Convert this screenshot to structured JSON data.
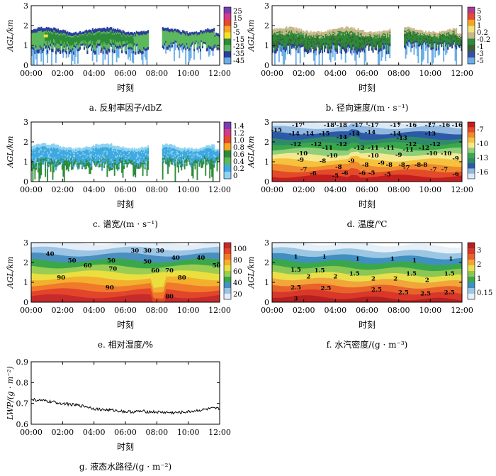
{
  "figure": {
    "common": {
      "xticks": [
        "00:00",
        "02:00",
        "04:00",
        "06:00",
        "08:00",
        "10:00",
        "12:00"
      ],
      "xlabel": "时刻",
      "ylabel": "AGL/km",
      "yticks": [
        0,
        1,
        2,
        3
      ]
    }
  },
  "chart_data": [
    {
      "id": "a",
      "type": "heatmap",
      "caption": "a. 反射率因子/dbZ",
      "xlabel": "时刻",
      "ylabel": "AGL/km",
      "ylim": [
        0,
        3
      ],
      "colorbar": {
        "ticks": [
          "25",
          "15",
          "5",
          "-5",
          "-15",
          "-25",
          "-35",
          "-45"
        ],
        "colors": [
          "#7a3db3",
          "#d63a8a",
          "#e8492e",
          "#f5a623",
          "#f4e12e",
          "#2e8b3a",
          "#5db85d",
          "#2c3f9a",
          "#6aaee6"
        ]
      },
      "data": {
        "cloud_base_km": [
          0.5,
          1.0
        ],
        "cloud_top_km": 1.8,
        "gap_interval": [
          "07:30",
          "08:20"
        ]
      }
    },
    {
      "id": "b",
      "type": "heatmap",
      "caption": "b. 径向速度/(m · s⁻¹)",
      "xlabel": "时刻",
      "ylabel": "AGL/km",
      "ylim": [
        0,
        3
      ],
      "colorbar": {
        "ticks": [
          "5",
          "3",
          "1",
          "0.2",
          "-0.2",
          "-1",
          "-3",
          "-5"
        ],
        "colors": [
          "#b03a8c",
          "#e8492e",
          "#f5a623",
          "#f1e27a",
          "#c8b88a",
          "#2e8b3a",
          "#3a5f30",
          "#3b4ea3",
          "#6aaee6"
        ]
      },
      "data": {
        "cloud_base_km": [
          0.3,
          1.0
        ],
        "cloud_top_km": 1.9
      }
    },
    {
      "id": "c",
      "type": "heatmap",
      "caption": "c. 谱宽/(m · s⁻¹)",
      "xlabel": "时刻",
      "ylabel": "AGL/km",
      "ylim": [
        0,
        3
      ],
      "colorbar": {
        "ticks": [
          "1.4",
          "1.2",
          "1.0",
          "0.8",
          "0.6",
          "0.4",
          "0.2",
          "0"
        ],
        "colors": [
          "#7a3db3",
          "#d63a8a",
          "#e8492e",
          "#f5a623",
          "#2e8b3a",
          "#5db85d",
          "#3fa9e0",
          "#8fd3f2"
        ]
      },
      "data": {
        "cloud_base_km": [
          0.3,
          1.0
        ],
        "cloud_top_km": 1.8
      }
    },
    {
      "id": "d",
      "type": "heatmap",
      "caption": "d. 温度/℃",
      "xlabel": "时刻",
      "ylabel": "AGL/km",
      "ylim": [
        0,
        3
      ],
      "colorbar": {
        "ticks": [
          "-7",
          "-10",
          "-13",
          "-16"
        ],
        "colors": [
          "#c41e1e",
          "#e34a2a",
          "#f08a2e",
          "#f6c23e",
          "#f4e98f",
          "#8fcf7a",
          "#3aa84a",
          "#2f8a6a",
          "#2c5aa6",
          "#8fb7df",
          "#dbe9f6"
        ]
      },
      "contour_labels": [
        {
          "value": "-15",
          "t": 0.28,
          "z": 2.6
        },
        {
          "value": "-17",
          "t": 1.6,
          "z": 2.85
        },
        {
          "value": "-18",
          "t": 3.6,
          "z": 2.85
        },
        {
          "value": "-18",
          "t": 4.4,
          "z": 2.85
        },
        {
          "value": "-17",
          "t": 5.4,
          "z": 2.85
        },
        {
          "value": "-17",
          "t": 6.4,
          "z": 2.85
        },
        {
          "value": "-17",
          "t": 7.8,
          "z": 2.85
        },
        {
          "value": "-16",
          "t": 8.8,
          "z": 2.85
        },
        {
          "value": "-17",
          "t": 10.0,
          "z": 2.85
        },
        {
          "value": "-16",
          "t": 10.9,
          "z": 2.85
        },
        {
          "value": "-16",
          "t": 11.7,
          "z": 2.85
        },
        {
          "value": "-14",
          "t": 1.4,
          "z": 2.42
        },
        {
          "value": "-14",
          "t": 2.3,
          "z": 2.42
        },
        {
          "value": "-15",
          "t": 3.3,
          "z": 2.42
        },
        {
          "value": "-14",
          "t": 5.2,
          "z": 2.42
        },
        {
          "value": "-14",
          "t": 6.2,
          "z": 2.5
        },
        {
          "value": "-14",
          "t": 7.8,
          "z": 2.42
        },
        {
          "value": "-13",
          "t": 10.0,
          "z": 2.42
        },
        {
          "value": "-14",
          "t": 4.4,
          "z": 2.25
        },
        {
          "value": "-13",
          "t": 8.2,
          "z": 2.22
        },
        {
          "value": "-12",
          "t": 1.5,
          "z": 1.9
        },
        {
          "value": "-12",
          "t": 2.8,
          "z": 1.9
        },
        {
          "value": "-12",
          "t": 4.4,
          "z": 1.9
        },
        {
          "value": "-12",
          "t": 8.8,
          "z": 1.9
        },
        {
          "value": "-12",
          "t": 10.3,
          "z": 1.9
        },
        {
          "value": "-11",
          "t": 3.5,
          "z": 1.72
        },
        {
          "value": "-12",
          "t": 5.5,
          "z": 1.72
        },
        {
          "value": "-11",
          "t": 6.4,
          "z": 1.72
        },
        {
          "value": "-11",
          "t": 7.4,
          "z": 1.72
        },
        {
          "value": "-11",
          "t": 8.6,
          "z": 1.62
        },
        {
          "value": "-12",
          "t": 9.6,
          "z": 1.72
        },
        {
          "value": "-10",
          "t": 1.9,
          "z": 1.42
        },
        {
          "value": "-10",
          "t": 10.1,
          "z": 1.42
        },
        {
          "value": "-10",
          "t": 11.0,
          "z": 1.42
        },
        {
          "value": "-10",
          "t": 3.8,
          "z": 1.32
        },
        {
          "value": "-10",
          "t": 6.4,
          "z": 1.32
        },
        {
          "value": "-9",
          "t": 8.0,
          "z": 1.35
        },
        {
          "value": "-9",
          "t": 11.6,
          "z": 1.18
        },
        {
          "value": "-9",
          "t": 1.8,
          "z": 1.1
        },
        {
          "value": "-8",
          "t": 3.2,
          "z": 1.05
        },
        {
          "value": "-9",
          "t": 5.0,
          "z": 1.05
        },
        {
          "value": "-8",
          "t": 5.9,
          "z": 0.85
        },
        {
          "value": "-9",
          "t": 6.9,
          "z": 0.95
        },
        {
          "value": "-8",
          "t": 7.4,
          "z": 0.85
        },
        {
          "value": "-8",
          "t": 8.2,
          "z": 0.85
        },
        {
          "value": "-8",
          "t": 9.2,
          "z": 0.85
        },
        {
          "value": "-8",
          "t": 9.6,
          "z": 0.85
        },
        {
          "value": "-8",
          "t": 4.2,
          "z": 0.75
        },
        {
          "value": "-7",
          "t": 8.5,
          "z": 0.72
        },
        {
          "value": "-7",
          "t": 10.2,
          "z": 0.62
        },
        {
          "value": "-7",
          "t": 10.9,
          "z": 0.62
        },
        {
          "value": "-7",
          "t": 2.0,
          "z": 0.62
        },
        {
          "value": "-6",
          "t": 2.6,
          "z": 0.42
        },
        {
          "value": "-6",
          "t": 5.7,
          "z": 0.45
        },
        {
          "value": "-5",
          "t": 6.3,
          "z": 0.45
        },
        {
          "value": "-6",
          "t": 4.6,
          "z": 0.45
        },
        {
          "value": "-5",
          "t": 4.0,
          "z": 0.3
        },
        {
          "value": "-5",
          "t": 7.3,
          "z": 0.38
        },
        {
          "value": "-6",
          "t": 11.6,
          "z": 0.4
        }
      ]
    },
    {
      "id": "e",
      "type": "heatmap",
      "caption": "e. 相对湿度/%",
      "xlabel": "时刻",
      "ylabel": "AGL/km",
      "ylim": [
        0,
        3
      ],
      "colorbar": {
        "ticks": [
          "100",
          "80",
          "60",
          "40",
          "20"
        ],
        "colors": [
          "#c62a2a",
          "#e2452a",
          "#f07a2a",
          "#f3b02f",
          "#eadf3e",
          "#9acd52",
          "#3aa84a",
          "#4a8fbf",
          "#9cc4e4",
          "#e4eef8"
        ]
      },
      "contour_labels": [
        {
          "value": "40",
          "t": 1.2,
          "z": 2.45
        },
        {
          "value": "30",
          "t": 6.6,
          "z": 2.6
        },
        {
          "value": "30",
          "t": 7.4,
          "z": 2.6
        },
        {
          "value": "30",
          "t": 8.2,
          "z": 2.6
        },
        {
          "value": "50",
          "t": 2.6,
          "z": 2.1
        },
        {
          "value": "40",
          "t": 9.2,
          "z": 2.25
        },
        {
          "value": "40",
          "t": 10.8,
          "z": 2.25
        },
        {
          "value": "60",
          "t": 3.6,
          "z": 1.85
        },
        {
          "value": "50",
          "t": 5.1,
          "z": 2.1
        },
        {
          "value": "50",
          "t": 7.4,
          "z": 2.05
        },
        {
          "value": "70",
          "t": 5.2,
          "z": 1.7
        },
        {
          "value": "60",
          "t": 7.9,
          "z": 1.6
        },
        {
          "value": "70",
          "t": 8.8,
          "z": 1.6
        },
        {
          "value": "50",
          "t": 11.8,
          "z": 1.85
        },
        {
          "value": "90",
          "t": 1.9,
          "z": 1.25
        },
        {
          "value": "80",
          "t": 9.6,
          "z": 1.25
        },
        {
          "value": "90",
          "t": 5.0,
          "z": 0.75
        },
        {
          "value": "80",
          "t": 8.8,
          "z": 0.3
        }
      ]
    },
    {
      "id": "f",
      "type": "heatmap",
      "caption": "f. 水汽密度/(g · m⁻³)",
      "xlabel": "时刻",
      "ylabel": "AGL/km",
      "ylim": [
        0,
        3
      ],
      "colorbar": {
        "ticks": [
          "3",
          "2",
          "1",
          "0.15"
        ],
        "colors": [
          "#b52020",
          "#d8372a",
          "#e8632a",
          "#f2a53a",
          "#e9df4a",
          "#8cc753",
          "#3aa84a",
          "#3f8fc0",
          "#9cc7e4",
          "#e6f0f8"
        ]
      },
      "contour_labels": [
        {
          "value": "1",
          "t": 1.5,
          "z": 2.3
        },
        {
          "value": "1",
          "t": 3.3,
          "z": 2.3
        },
        {
          "value": "1",
          "t": 5.4,
          "z": 2.2
        },
        {
          "value": "1",
          "t": 7.6,
          "z": 2.2
        },
        {
          "value": "1",
          "t": 9.0,
          "z": 2.1
        },
        {
          "value": "1",
          "t": 11.3,
          "z": 2.2
        },
        {
          "value": "1.5",
          "t": 1.5,
          "z": 1.65
        },
        {
          "value": "1.5",
          "t": 3.0,
          "z": 1.6
        },
        {
          "value": "1.5",
          "t": 5.2,
          "z": 1.45
        },
        {
          "value": "1.5",
          "t": 8.8,
          "z": 1.45
        },
        {
          "value": "1.5",
          "t": 11.2,
          "z": 1.45
        },
        {
          "value": "2",
          "t": 2.3,
          "z": 1.3
        },
        {
          "value": "2",
          "t": 4.0,
          "z": 1.3
        },
        {
          "value": "2",
          "t": 6.4,
          "z": 1.2
        },
        {
          "value": "2",
          "t": 7.8,
          "z": 1.2
        },
        {
          "value": "2",
          "t": 9.8,
          "z": 1.12
        },
        {
          "value": "2.5",
          "t": 1.5,
          "z": 0.75
        },
        {
          "value": "2.5",
          "t": 3.4,
          "z": 0.72
        },
        {
          "value": "2.5",
          "t": 6.6,
          "z": 0.65
        },
        {
          "value": "2.5",
          "t": 8.3,
          "z": 0.5
        },
        {
          "value": "2.5",
          "t": 9.7,
          "z": 0.45
        },
        {
          "value": "2.5",
          "t": 11.2,
          "z": 0.5
        },
        {
          "value": "3",
          "t": 1.5,
          "z": 0.2
        }
      ]
    },
    {
      "id": "g",
      "type": "line",
      "caption": "g. 液态水路径/(g · m⁻²)",
      "xlabel": "时刻",
      "ylabel": "LWP/(g · m⁻²)",
      "ylim": [
        0.6,
        0.9
      ],
      "yticks": [
        "0.6",
        "0.7",
        "0.8",
        "0.9"
      ],
      "x_hours": [
        0,
        0.5,
        1,
        1.5,
        2,
        2.5,
        3,
        3.5,
        4,
        4.5,
        5,
        5.5,
        6,
        6.5,
        7,
        7.5,
        8,
        8.5,
        9,
        9.5,
        10,
        10.5,
        11,
        11.5,
        12
      ],
      "values": [
        0.72,
        0.715,
        0.71,
        0.705,
        0.7,
        0.695,
        0.69,
        0.685,
        0.675,
        0.67,
        0.668,
        0.665,
        0.66,
        0.66,
        0.662,
        0.66,
        0.658,
        0.657,
        0.655,
        0.656,
        0.66,
        0.665,
        0.67,
        0.675,
        0.675
      ]
    }
  ]
}
